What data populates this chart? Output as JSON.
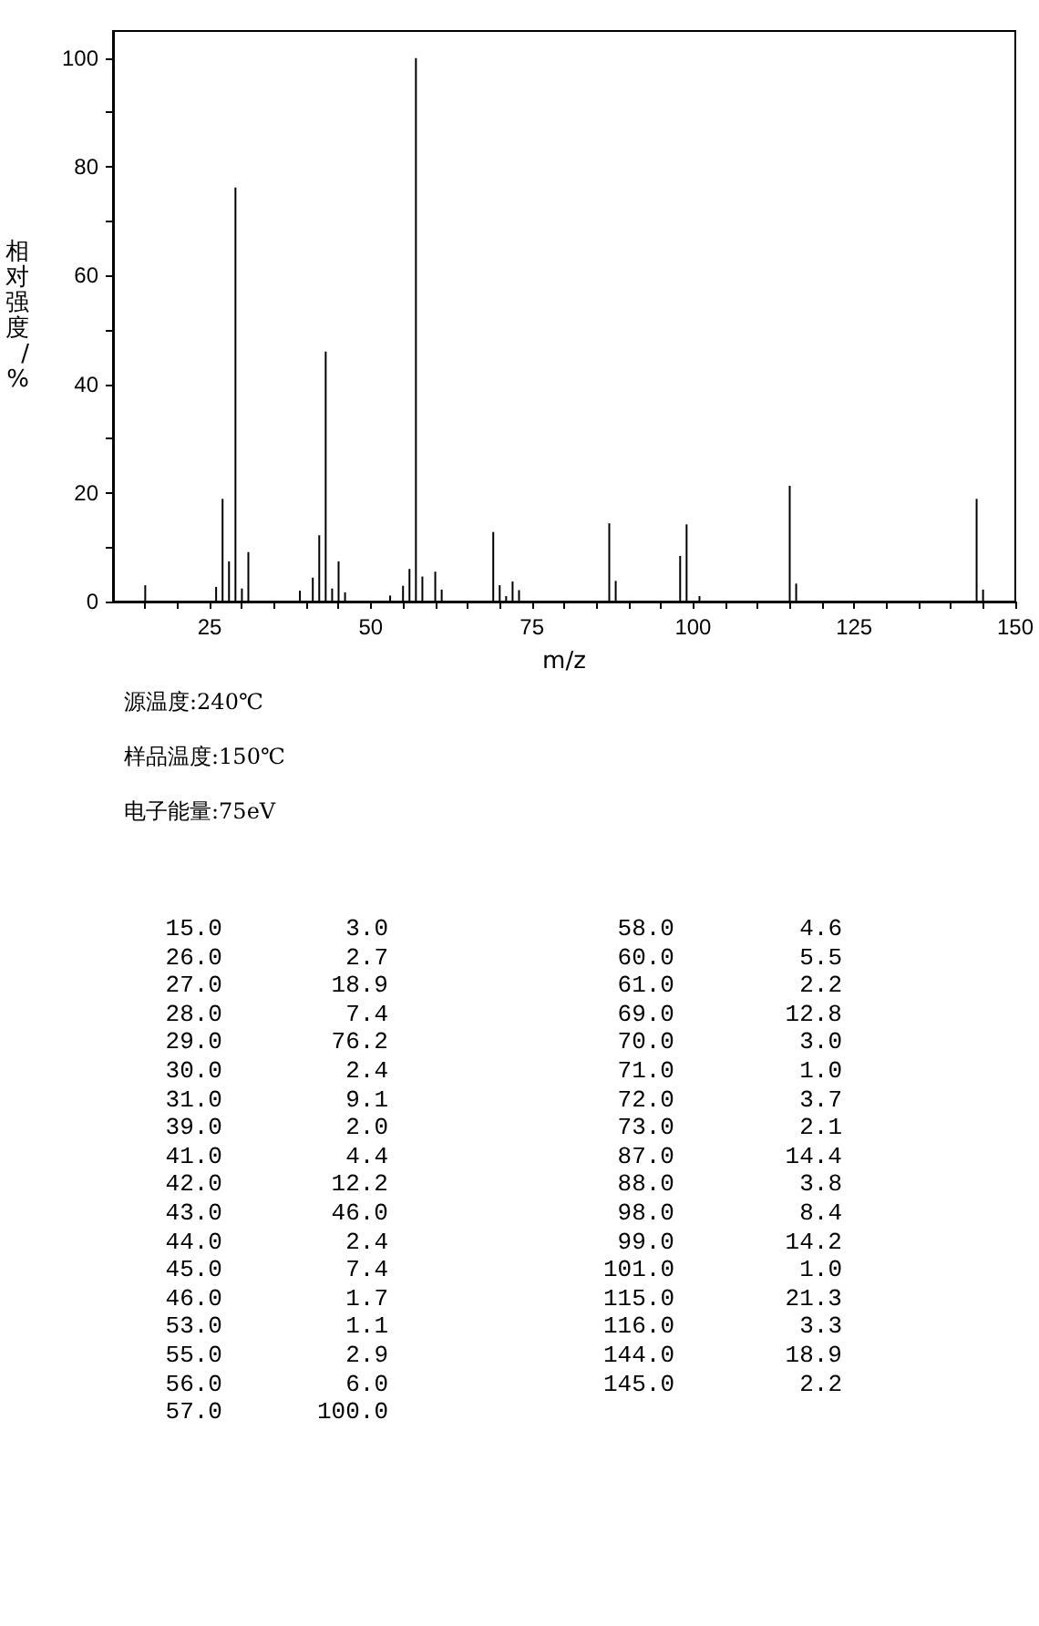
{
  "chart_data": {
    "type": "bar",
    "xlabel": "m/z",
    "ylabel": "相对强度/%",
    "x": [
      15,
      26,
      27,
      28,
      29,
      30,
      31,
      39,
      41,
      42,
      43,
      44,
      45,
      46,
      53,
      55,
      56,
      57,
      58,
      60,
      61,
      69,
      70,
      71,
      72,
      73,
      87,
      88,
      98,
      99,
      101,
      115,
      116,
      144,
      145
    ],
    "values": [
      3.0,
      2.7,
      18.9,
      7.4,
      76.2,
      2.4,
      9.1,
      2.0,
      4.4,
      12.2,
      46.0,
      2.4,
      7.4,
      1.7,
      1.1,
      2.9,
      6.0,
      100.0,
      4.6,
      5.5,
      2.2,
      12.8,
      3.0,
      1.0,
      3.7,
      2.1,
      14.4,
      3.8,
      8.4,
      14.2,
      1.0,
      21.3,
      3.3,
      18.9,
      2.2
    ],
    "color": "#000000",
    "grid": false,
    "xlim": [
      10,
      150
    ],
    "xticks": [
      {
        "value": 15,
        "label": null
      },
      {
        "value": 20,
        "label": null
      },
      25,
      {
        "value": 30,
        "label": null
      },
      {
        "value": 35,
        "label": null
      },
      {
        "value": 40,
        "label": null
      },
      {
        "value": 45,
        "label": null
      },
      50,
      {
        "value": 55,
        "label": null
      },
      {
        "value": 60,
        "label": null
      },
      {
        "value": 65,
        "label": null
      },
      {
        "value": 70,
        "label": null
      },
      75,
      {
        "value": 80,
        "label": null
      },
      {
        "value": 85,
        "label": null
      },
      {
        "value": 90,
        "label": null
      },
      {
        "value": 95,
        "label": null
      },
      100,
      {
        "value": 105,
        "label": null
      },
      {
        "value": 110,
        "label": null
      },
      {
        "value": 115,
        "label": null
      },
      {
        "value": 120,
        "label": null
      },
      125,
      {
        "value": 130,
        "label": null
      },
      {
        "value": 135,
        "label": null
      },
      {
        "value": 140,
        "label": null
      },
      {
        "value": 145,
        "label": null
      },
      150
    ],
    "ylim": [
      0,
      105
    ],
    "yticks": [
      0,
      {
        "value": 10,
        "label": null
      },
      20,
      {
        "value": 30,
        "label": null
      },
      40,
      {
        "value": 50,
        "label": null
      },
      60,
      {
        "value": 70,
        "label": null
      },
      80,
      {
        "value": 90,
        "label": null
      },
      100
    ],
    "annotations": [
      "源温度:240℃",
      "样品温度:150℃",
      "电子能量:75eV",
      "15.0",
      "3.0",
      "26.0",
      "2.7",
      "27.0",
      "18.9",
      "28.0",
      "7.4",
      "29.0",
      "76.2",
      "30.0",
      "2.4",
      "31.0",
      "9.1",
      "39.0",
      "2.0",
      "41.0",
      "4.4",
      "42.0",
      "12.2",
      "43.0",
      "46.0",
      "44.0",
      "2.4",
      "45.0",
      "7.4",
      "46.0",
      "1.7",
      "53.0",
      "1.1",
      "55.0",
      "2.9",
      "56.0",
      "6.0",
      "57.0",
      "100.0",
      "58.0",
      "4.6",
      "60.0",
      "5.5",
      "61.0",
      "2.2",
      "69.0",
      "12.8",
      "70.0",
      "3.0",
      "71.0",
      "1.0",
      "72.0",
      "3.7",
      "73.0",
      "2.1",
      "87.0",
      "14.4",
      "88.0",
      "3.8",
      "98.0",
      "8.4",
      "99.0",
      "14.2",
      "101.0",
      "1.0",
      "115.0",
      "21.3",
      "116.0",
      "3.3",
      "144.0",
      "18.9",
      "145.0",
      "2.2"
    ]
  }
}
